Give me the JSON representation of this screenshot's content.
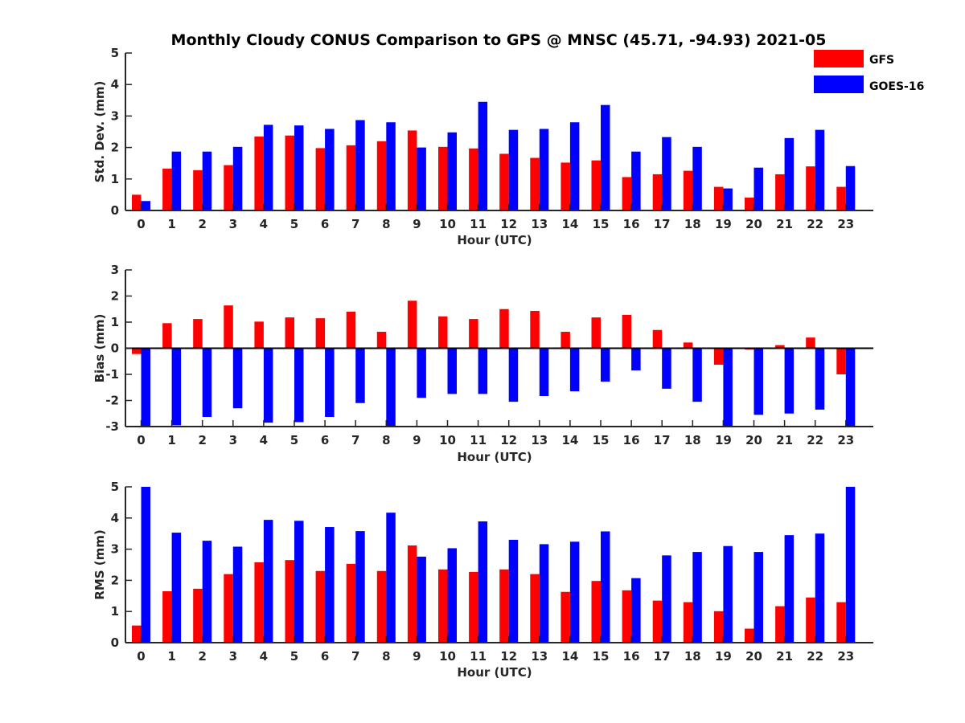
{
  "title": "Monthly Cloudy CONUS Comparison to GPS @ MNSC (45.71, -94.93) 2021-05",
  "legend": [
    {
      "name": "GFS",
      "color": "#ff0000"
    },
    {
      "name": "GOES-16",
      "color": "#0000ff"
    }
  ],
  "chart_data": [
    {
      "type": "bar",
      "ylabel": "Std. Dev. (mm)",
      "xlabel": "Hour (UTC)",
      "ylim": [
        0,
        5
      ],
      "yticks": [
        0,
        1,
        2,
        3,
        4,
        5
      ],
      "categories": [
        "0",
        "1",
        "2",
        "3",
        "4",
        "5",
        "6",
        "7",
        "8",
        "9",
        "10",
        "11",
        "12",
        "13",
        "14",
        "15",
        "16",
        "17",
        "18",
        "19",
        "20",
        "21",
        "22",
        "23"
      ],
      "series": [
        {
          "name": "GFS",
          "color": "#ff0000",
          "values": [
            0.5,
            1.33,
            1.28,
            1.44,
            2.35,
            2.38,
            1.98,
            2.07,
            2.2,
            2.54,
            2.02,
            1.97,
            1.8,
            1.67,
            1.52,
            1.59,
            1.06,
            1.15,
            1.26,
            0.75,
            0.41,
            1.15,
            1.4,
            0.75
          ]
        },
        {
          "name": "GOES-16",
          "color": "#0000ff",
          "values": [
            0.3,
            1.87,
            1.87,
            2.02,
            2.72,
            2.7,
            2.59,
            2.87,
            2.8,
            2.0,
            2.48,
            3.45,
            2.56,
            2.59,
            2.8,
            3.35,
            1.87,
            2.33,
            2.02,
            0.7,
            1.36,
            2.3,
            2.56,
            1.41
          ]
        }
      ]
    },
    {
      "type": "bar",
      "ylabel": "Bias (mm)",
      "xlabel": "Hour (UTC)",
      "ylim": [
        -3,
        3
      ],
      "yticks": [
        -3,
        -2,
        -1,
        0,
        1,
        2,
        3
      ],
      "zero_line": true,
      "categories": [
        "0",
        "1",
        "2",
        "3",
        "4",
        "5",
        "6",
        "7",
        "8",
        "9",
        "10",
        "11",
        "12",
        "13",
        "14",
        "15",
        "16",
        "17",
        "18",
        "19",
        "20",
        "21",
        "22",
        "23"
      ],
      "series": [
        {
          "name": "GFS",
          "color": "#ff0000",
          "values": [
            -0.22,
            0.96,
            1.12,
            1.64,
            1.02,
            1.18,
            1.15,
            1.4,
            0.63,
            1.82,
            1.22,
            1.12,
            1.5,
            1.43,
            0.63,
            1.18,
            1.28,
            0.7,
            0.22,
            -0.63,
            -0.05,
            0.12,
            0.41,
            -1.0
          ]
        },
        {
          "name": "GOES-16",
          "color": "#0000ff",
          "values": [
            -3.0,
            -2.95,
            -2.63,
            -2.3,
            -2.85,
            -2.83,
            -2.63,
            -2.1,
            -3.0,
            -1.9,
            -1.75,
            -1.75,
            -2.05,
            -1.83,
            -1.65,
            -1.28,
            -0.85,
            -1.55,
            -2.05,
            -3.0,
            -2.55,
            -2.5,
            -2.35,
            -3.0
          ]
        }
      ]
    },
    {
      "type": "bar",
      "ylabel": "RMS (mm)",
      "xlabel": "Hour (UTC)",
      "ylim": [
        0,
        5
      ],
      "yticks": [
        0,
        1,
        2,
        3,
        4,
        5
      ],
      "categories": [
        "0",
        "1",
        "2",
        "3",
        "4",
        "5",
        "6",
        "7",
        "8",
        "9",
        "10",
        "11",
        "12",
        "13",
        "14",
        "15",
        "16",
        "17",
        "18",
        "19",
        "20",
        "21",
        "22",
        "23"
      ],
      "series": [
        {
          "name": "GFS",
          "color": "#ff0000",
          "values": [
            0.55,
            1.65,
            1.73,
            2.2,
            2.58,
            2.65,
            2.3,
            2.53,
            2.3,
            3.12,
            2.35,
            2.27,
            2.35,
            2.2,
            1.63,
            1.98,
            1.68,
            1.35,
            1.3,
            1.01,
            0.45,
            1.17,
            1.45,
            1.3
          ]
        },
        {
          "name": "GOES-16",
          "color": "#0000ff",
          "values": [
            5.0,
            3.53,
            3.27,
            3.08,
            3.94,
            3.91,
            3.71,
            3.58,
            4.17,
            2.76,
            3.03,
            3.89,
            3.3,
            3.16,
            3.24,
            3.57,
            2.07,
            2.8,
            2.91,
            3.1,
            2.91,
            3.45,
            3.5,
            5.0
          ]
        }
      ]
    }
  ]
}
